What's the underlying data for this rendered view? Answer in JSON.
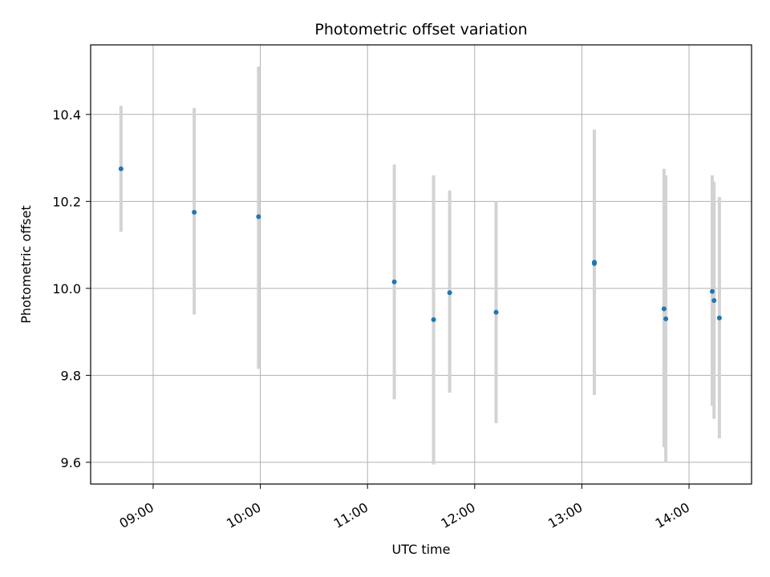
{
  "chart_data": {
    "type": "scatter",
    "title": "Photometric offset variation",
    "xlabel": "UTC time",
    "ylabel": "Photometric offset",
    "grid": true,
    "x_axis": {
      "kind": "time",
      "range": [
        "08:25",
        "14:35"
      ],
      "ticks": [
        "09:00",
        "10:00",
        "11:00",
        "12:00",
        "13:00",
        "14:00"
      ]
    },
    "y_axis": {
      "range": [
        9.55,
        10.56
      ],
      "ticks": [
        9.6,
        9.8,
        10.0,
        10.2,
        10.4
      ],
      "tick_labels": [
        "9.6",
        "9.8",
        "10.0",
        "10.2",
        "10.4"
      ]
    },
    "marker_color": "#1f77b4",
    "errorbar_color": "#d3d3d3",
    "points": [
      {
        "x": "08:42",
        "y": 10.275,
        "ylow": 10.13,
        "yhigh": 10.42
      },
      {
        "x": "09:23",
        "y": 10.175,
        "ylow": 9.94,
        "yhigh": 10.415
      },
      {
        "x": "09:59",
        "y": 10.165,
        "ylow": 9.815,
        "yhigh": 10.51
      },
      {
        "x": "11:15",
        "y": 10.015,
        "ylow": 9.745,
        "yhigh": 10.285
      },
      {
        "x": "11:37",
        "y": 9.928,
        "ylow": 9.595,
        "yhigh": 10.26
      },
      {
        "x": "11:46",
        "y": 9.99,
        "ylow": 9.76,
        "yhigh": 10.225
      },
      {
        "x": "12:12",
        "y": 9.945,
        "ylow": 9.69,
        "yhigh": 10.2
      },
      {
        "x": "13:07",
        "y": 10.06,
        "ylow": 9.755,
        "yhigh": 10.365
      },
      {
        "x": "13:07",
        "y": 10.057,
        "ylow": 9.755,
        "yhigh": 10.36
      },
      {
        "x": "13:46",
        "y": 9.953,
        "ylow": 9.635,
        "yhigh": 10.275
      },
      {
        "x": "13:47",
        "y": 9.93,
        "ylow": 9.6,
        "yhigh": 10.26
      },
      {
        "x": "14:13",
        "y": 9.993,
        "ylow": 9.73,
        "yhigh": 10.26
      },
      {
        "x": "14:14",
        "y": 9.972,
        "ylow": 9.7,
        "yhigh": 10.245
      },
      {
        "x": "14:17",
        "y": 9.932,
        "ylow": 9.655,
        "yhigh": 10.21
      }
    ]
  }
}
